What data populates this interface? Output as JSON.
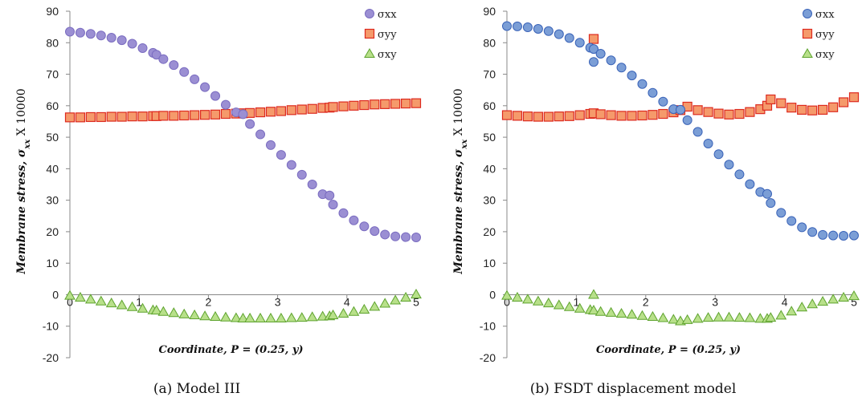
{
  "chart_data": [
    {
      "type": "scatter",
      "caption": "(a) Model III",
      "ylabel_prefix": "Membrane stress, ",
      "ylabel_symbol": "σ",
      "ylabel_sub": "xx",
      "ylabel_suffix": " X 10000",
      "xlabel": "Coordinate, P = (0.25, y)",
      "xlim": [
        0,
        5
      ],
      "ylim": [
        -20,
        90
      ],
      "xticks": [
        "0",
        "1",
        "2",
        "3",
        "4",
        "5"
      ],
      "yticks": [
        "-20",
        "-10",
        "0",
        "10",
        "20",
        "30",
        "40",
        "50",
        "60",
        "70",
        "80",
        "90"
      ],
      "legend_position": "top-right",
      "series": [
        {
          "name": "σxx",
          "marker": "circle",
          "fill": "#9b8fd3",
          "stroke": "#7a6cc0",
          "x": [
            0,
            0.15,
            0.3,
            0.45,
            0.6,
            0.75,
            0.9,
            1.05,
            1.2,
            1.25,
            1.35,
            1.5,
            1.65,
            1.8,
            1.95,
            2.1,
            2.25,
            2.4,
            2.5,
            2.6,
            2.75,
            2.9,
            3.05,
            3.2,
            3.35,
            3.5,
            3.65,
            3.75,
            3.8,
            3.95,
            4.1,
            4.25,
            4.4,
            4.55,
            4.7,
            4.85,
            5
          ],
          "y": [
            83.5,
            83.2,
            82.8,
            82.3,
            81.6,
            80.8,
            79.7,
            78.3,
            76.8,
            76.2,
            74.8,
            72.9,
            70.7,
            68.4,
            65.9,
            63.1,
            60.3,
            57.9,
            57.3,
            54.2,
            50.9,
            47.5,
            44.4,
            41.2,
            38.1,
            35.0,
            31.9,
            31.5,
            28.6,
            25.9,
            23.6,
            21.7,
            20.2,
            19.1,
            18.5,
            18.3,
            18.2
          ]
        },
        {
          "name": "σyy",
          "marker": "square",
          "fill": "#f59a6b",
          "stroke": "#dd2a1f",
          "x": [
            0,
            0.15,
            0.3,
            0.45,
            0.6,
            0.75,
            0.9,
            1.05,
            1.2,
            1.25,
            1.35,
            1.5,
            1.65,
            1.8,
            1.95,
            2.1,
            2.25,
            2.4,
            2.5,
            2.6,
            2.75,
            2.9,
            3.05,
            3.2,
            3.35,
            3.5,
            3.65,
            3.75,
            3.8,
            3.95,
            4.1,
            4.25,
            4.4,
            4.55,
            4.7,
            4.85,
            5
          ],
          "y": [
            56.3,
            56.3,
            56.4,
            56.4,
            56.5,
            56.5,
            56.6,
            56.6,
            56.7,
            56.7,
            56.8,
            56.8,
            56.9,
            57.0,
            57.1,
            57.2,
            57.4,
            57.5,
            57.6,
            57.7,
            57.9,
            58.1,
            58.3,
            58.6,
            58.8,
            59.0,
            59.3,
            59.4,
            59.6,
            59.8,
            60.0,
            60.2,
            60.4,
            60.5,
            60.6,
            60.7,
            60.8
          ]
        },
        {
          "name": "σxy",
          "marker": "triangle",
          "fill": "#b8e08a",
          "stroke": "#5ea32e",
          "x": [
            0,
            0.15,
            0.3,
            0.45,
            0.6,
            0.75,
            0.9,
            1.05,
            1.2,
            1.25,
            1.35,
            1.5,
            1.65,
            1.8,
            1.95,
            2.1,
            2.25,
            2.4,
            2.5,
            2.6,
            2.75,
            2.9,
            3.05,
            3.2,
            3.35,
            3.5,
            3.65,
            3.75,
            3.8,
            3.95,
            4.1,
            4.25,
            4.4,
            4.55,
            4.7,
            4.85,
            5
          ],
          "y": [
            -0.3,
            -0.9,
            -1.5,
            -2.1,
            -2.7,
            -3.3,
            -3.9,
            -4.4,
            -4.9,
            -5.0,
            -5.4,
            -5.8,
            -6.2,
            -6.5,
            -6.8,
            -7.0,
            -7.2,
            -7.4,
            -7.5,
            -7.5,
            -7.5,
            -7.5,
            -7.5,
            -7.4,
            -7.3,
            -7.1,
            -6.9,
            -6.8,
            -6.5,
            -6.0,
            -5.4,
            -4.7,
            -3.8,
            -2.8,
            -1.8,
            -0.9,
            0.1
          ]
        }
      ]
    },
    {
      "type": "scatter",
      "caption": "(b) FSDT displacement model",
      "ylabel_prefix": "Membrane stress, ",
      "ylabel_symbol": "σ",
      "ylabel_sub": "xx",
      "ylabel_suffix": " X 10000",
      "xlabel": "Coordinate, P = (0.25, y)",
      "xlim": [
        0,
        5
      ],
      "ylim": [
        -20,
        90
      ],
      "xticks": [
        "0",
        "1",
        "2",
        "3",
        "4",
        "5"
      ],
      "yticks": [
        "-20",
        "-10",
        "0",
        "10",
        "20",
        "30",
        "40",
        "50",
        "60",
        "70",
        "80",
        "90"
      ],
      "legend_position": "top-right",
      "series": [
        {
          "name": "σxx",
          "marker": "circle",
          "fill": "#7b9ed6",
          "stroke": "#3a63b8",
          "x": [
            0,
            0.15,
            0.3,
            0.45,
            0.6,
            0.75,
            0.9,
            1.05,
            1.2,
            1.25,
            1.25,
            1.35,
            1.5,
            1.65,
            1.8,
            1.95,
            2.1,
            2.25,
            2.4,
            2.5,
            2.6,
            2.75,
            2.9,
            3.05,
            3.2,
            3.35,
            3.5,
            3.65,
            3.75,
            3.8,
            3.95,
            4.1,
            4.25,
            4.4,
            4.55,
            4.7,
            4.85,
            5
          ],
          "y": [
            85.3,
            85.2,
            84.9,
            84.4,
            83.7,
            82.7,
            81.5,
            80.0,
            78.4,
            73.9,
            78.0,
            76.5,
            74.4,
            72.1,
            69.6,
            66.9,
            64.1,
            61.3,
            58.9,
            58.7,
            55.4,
            51.7,
            48.0,
            44.6,
            41.3,
            38.2,
            35.1,
            32.6,
            32.0,
            29.1,
            26.0,
            23.4,
            21.4,
            19.9,
            19.0,
            18.8,
            18.7,
            18.8
          ]
        },
        {
          "name": "σyy",
          "marker": "square",
          "fill": "#f59a6b",
          "stroke": "#dd2a1f",
          "x": [
            0,
            0.15,
            0.3,
            0.45,
            0.6,
            0.75,
            0.9,
            1.05,
            1.2,
            1.25,
            1.25,
            1.35,
            1.5,
            1.65,
            1.8,
            1.95,
            2.1,
            2.25,
            2.4,
            2.5,
            2.6,
            2.75,
            2.9,
            3.05,
            3.2,
            3.35,
            3.5,
            3.65,
            3.75,
            3.8,
            3.95,
            4.1,
            4.25,
            4.4,
            4.55,
            4.7,
            4.85,
            5
          ],
          "y": [
            57.0,
            56.8,
            56.6,
            56.5,
            56.5,
            56.6,
            56.7,
            57.0,
            57.4,
            81.2,
            57.6,
            57.3,
            57.0,
            56.8,
            56.8,
            56.9,
            57.1,
            57.4,
            57.9,
            58.6,
            59.7,
            58.6,
            58.0,
            57.5,
            57.2,
            57.4,
            58.0,
            58.9,
            60.0,
            62.0,
            60.8,
            59.4,
            58.7,
            58.5,
            58.7,
            59.5,
            61.1,
            62.7
          ]
        },
        {
          "name": "σxy",
          "marker": "triangle",
          "fill": "#b8e08a",
          "stroke": "#5ea32e",
          "x": [
            0,
            0.15,
            0.3,
            0.45,
            0.6,
            0.75,
            0.9,
            1.05,
            1.2,
            1.25,
            1.25,
            1.35,
            1.5,
            1.65,
            1.8,
            1.95,
            2.1,
            2.25,
            2.4,
            2.5,
            2.6,
            2.75,
            2.9,
            3.05,
            3.2,
            3.35,
            3.5,
            3.65,
            3.75,
            3.8,
            3.95,
            4.1,
            4.25,
            4.4,
            4.55,
            4.7,
            4.85,
            5
          ],
          "y": [
            -0.3,
            -0.9,
            -1.5,
            -2.1,
            -2.7,
            -3.3,
            -3.9,
            -4.4,
            -4.8,
            0.0,
            -5.0,
            -5.4,
            -5.7,
            -6.0,
            -6.3,
            -6.7,
            -7.0,
            -7.4,
            -7.9,
            -8.4,
            -8.0,
            -7.6,
            -7.3,
            -7.2,
            -7.2,
            -7.3,
            -7.4,
            -7.6,
            -7.6,
            -7.3,
            -6.6,
            -5.3,
            -4.0,
            -3.0,
            -2.2,
            -1.5,
            -0.9,
            -0.4
          ]
        }
      ]
    }
  ]
}
